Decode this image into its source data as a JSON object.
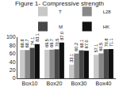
{
  "chart_data": {
    "type": "bar",
    "title": "Figure 1- Compressive strength",
    "categories": [
      "Box10",
      "Box20",
      "Box30",
      "Box40"
    ],
    "series": [
      {
        "name": "T",
        "color": "#c8c8c8",
        "values": [
          68.8,
          69.5,
          33.1,
          57.1
        ],
        "value_labels": [
          "68.8",
          "69.5",
          "33.1",
          "57.1"
        ]
      },
      {
        "name": "L28",
        "color": "#888888",
        "values": [
          68.74,
          69.65,
          60.2,
          60.5
        ],
        "value_labels": [
          "68.7",
          "69.7",
          "60.2",
          "60.5"
        ]
      },
      {
        "name": "M",
        "color": "#484848",
        "values": [
          74.1,
          70.5,
          68.1,
          70.8
        ],
        "value_labels": [
          "74.1",
          "70.5",
          "68.1",
          "70.8"
        ]
      },
      {
        "name": "HK",
        "color": "#101010",
        "values": [
          83.1,
          87.0,
          67.0,
          71.1
        ],
        "value_labels": [
          "83.1",
          "87.0",
          "67.0",
          "71.1"
        ]
      }
    ],
    "ylim": [
      0,
      100
    ],
    "yticks": [
      0,
      20,
      40,
      60,
      80,
      100
    ],
    "grid": false,
    "legend": "upper right",
    "data_labels": true
  }
}
